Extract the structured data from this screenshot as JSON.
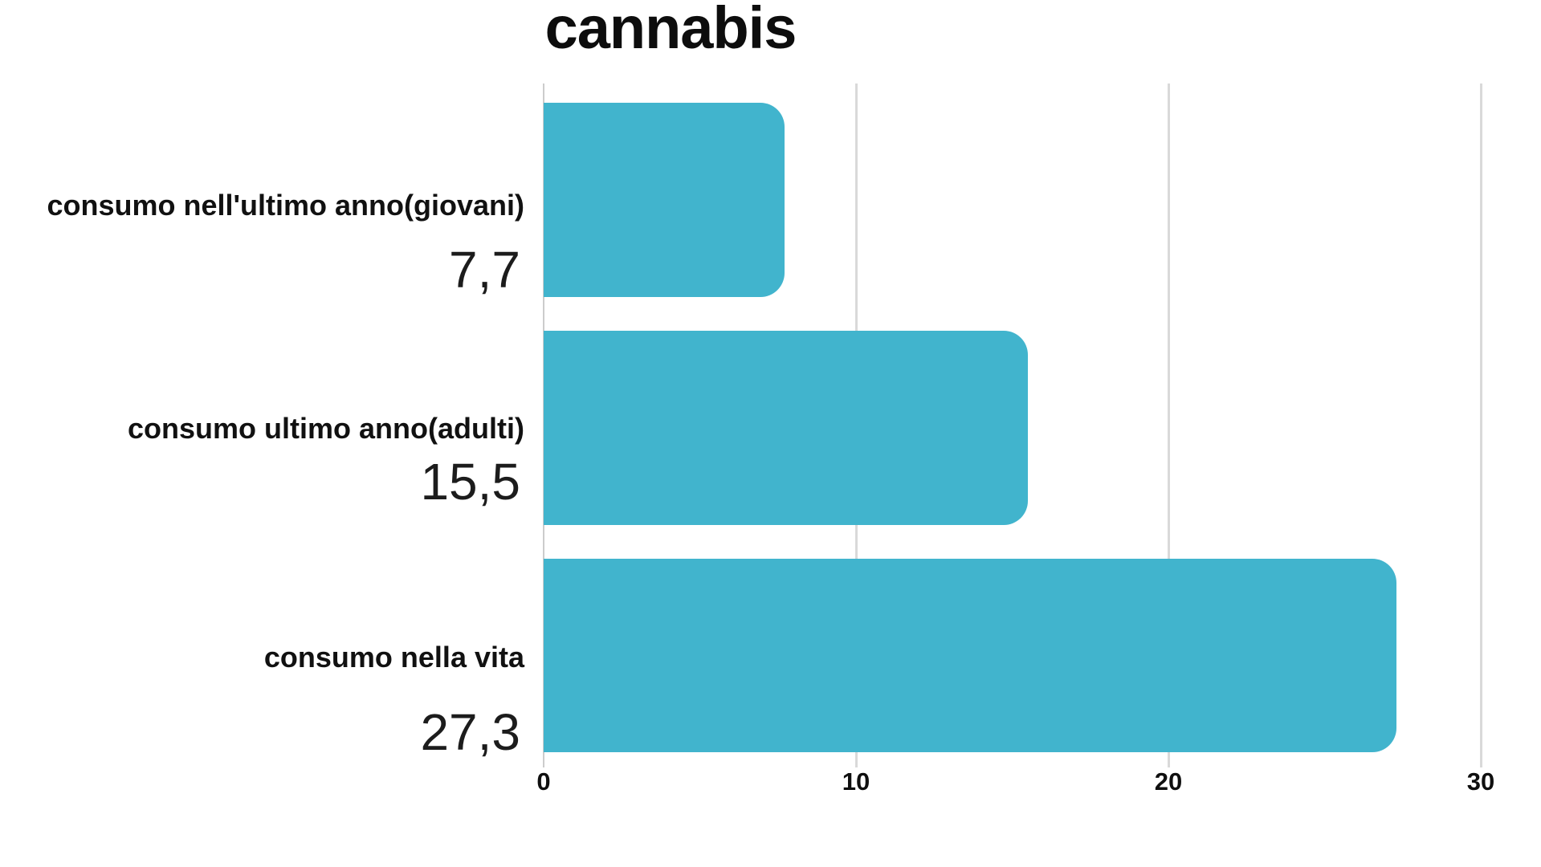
{
  "chart_data": {
    "type": "bar",
    "orientation": "horizontal",
    "title": "cannabis",
    "categories": [
      "consumo nell'ultimo anno(giovani)",
      "consumo ultimo anno(adulti)",
      "consumo nella vita"
    ],
    "values": [
      7.7,
      15.5,
      27.3
    ],
    "value_labels": [
      "7,7",
      "15,5",
      "27,3"
    ],
    "xlabel": "",
    "ylabel": "",
    "xlim": [
      0,
      30
    ],
    "x_ticks": [
      0,
      10,
      20,
      30
    ],
    "x_tick_labels": [
      "0",
      "10",
      "20",
      "30"
    ],
    "grid": "vertical",
    "legend": "none",
    "bar_color": "#41b4cd",
    "gridline_color": "#d9d9d9"
  }
}
